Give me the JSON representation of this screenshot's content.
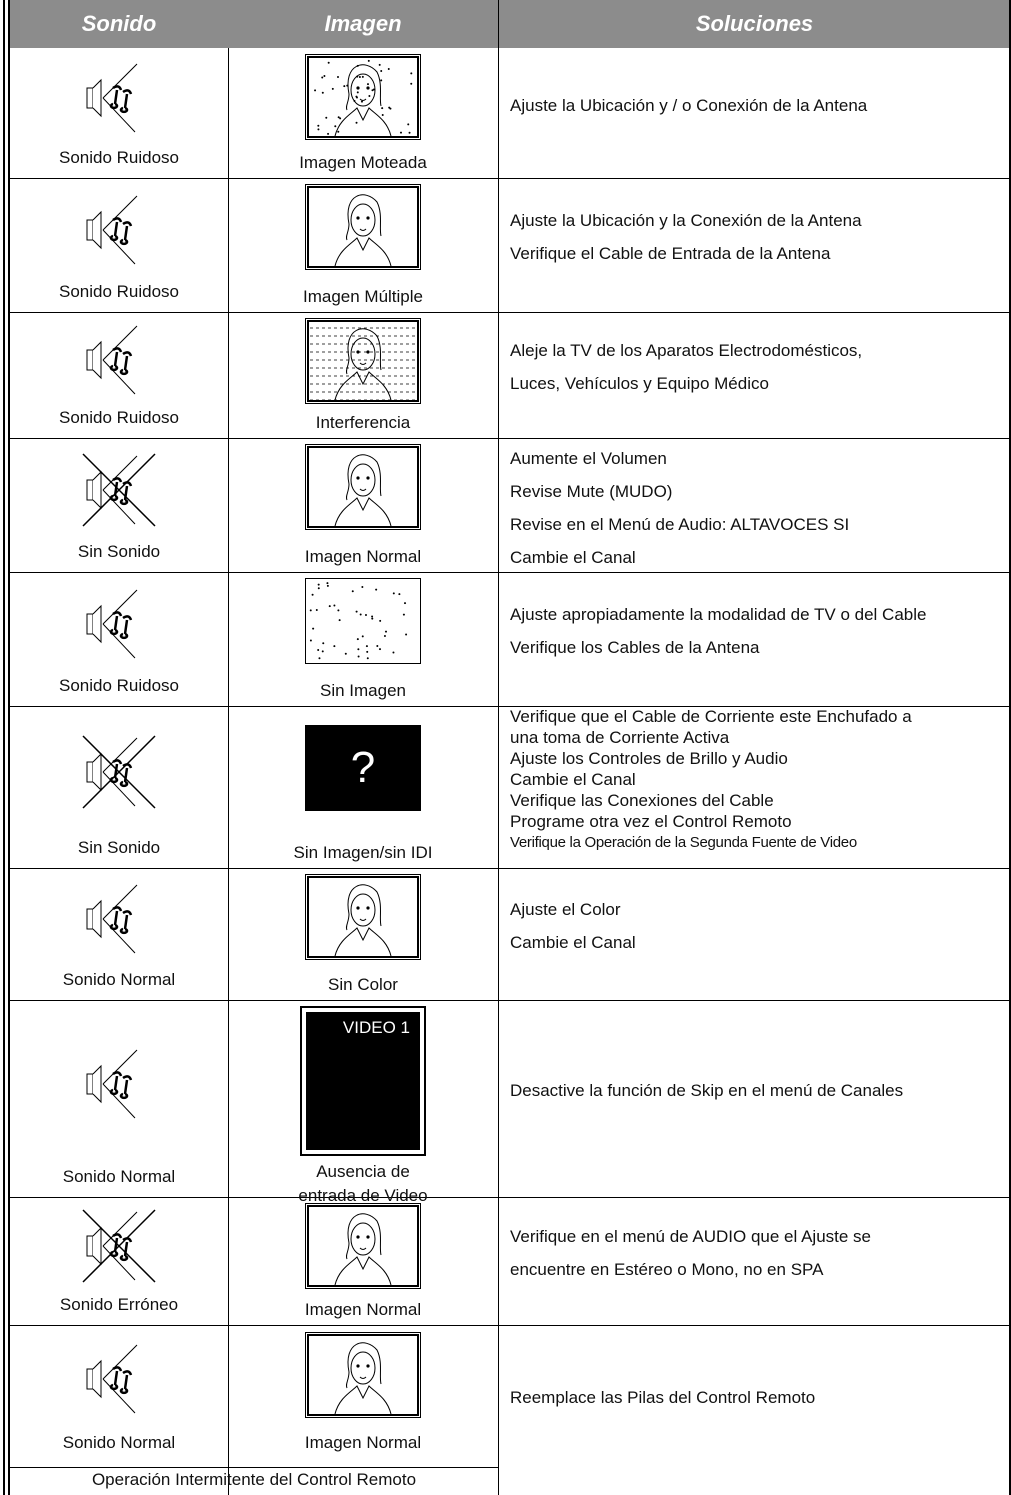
{
  "header": {
    "columns": [
      "Sonido",
      "Imagen",
      "Soluciones"
    ]
  },
  "rows": [
    {
      "sound": "Sonido Ruidoso",
      "image": "Imagen Moteada",
      "solutions": [
        "Ajuste la Ubicación y / o Conexión de la Antena"
      ]
    },
    {
      "sound": "Sonido Ruidoso",
      "image": "Imagen Múltiple",
      "solutions": [
        "Ajuste la Ubicación y la Conexión de la Antena",
        "Verifique el Cable de Entrada de la Antena"
      ]
    },
    {
      "sound": "Sonido Ruidoso",
      "image": "Interferencia",
      "solutions": [
        "Aleje la TV de los Aparatos Electrodomésticos,",
        "Luces, Vehículos y Equipo Médico"
      ]
    },
    {
      "sound": "Sin Sonido",
      "image": "Imagen Normal",
      "solutions": [
        "Aumente el Volumen",
        "Revise Mute (MUDO)",
        "Revise en el Menú de Audio: ALTAVOCES  SI",
        "Cambie el Canal"
      ]
    },
    {
      "sound": "Sonido Ruidoso",
      "image": "Sin Imagen",
      "solutions": [
        "Ajuste apropiadamente la modalidad de TV o del Cable",
        "Verifique los Cables de la Antena"
      ]
    },
    {
      "sound": "Sin Sonido",
      "image": "Sin Imagen/sin IDI",
      "image_text": "?",
      "solutions": [
        "Verifique que el Cable de Corriente este Enchufado a",
        "una toma de Corriente Activa",
        "Ajuste los Controles de Brillo y Audio",
        "Cambie el Canal",
        "Verifique las Conexiones del Cable",
        "Programe otra vez el Control Remoto",
        "Verifique la Operación de la Segunda Fuente de Video"
      ]
    },
    {
      "sound": "Sonido Normal",
      "image": "Sin Color",
      "solutions": [
        "Ajuste el Color",
        "Cambie el Canal"
      ]
    },
    {
      "sound": "Sonido Normal",
      "image": [
        "Ausencia de",
        "entrada de Video"
      ],
      "image_text": "VIDEO 1",
      "solutions": [
        "Desactive la función de Skip en el menú de Canales"
      ]
    },
    {
      "sound": "Sonido Erróneo",
      "image": "Imagen Normal",
      "solutions": [
        "Verifique en el menú de AUDIO que el Ajuste se",
        "encuentre en Estéreo o Mono, no en SPA"
      ]
    },
    {
      "sound": "Sonido Normal",
      "image": "Imagen Normal",
      "solutions": [
        "Reemplace las Pilas del Control Remoto"
      ],
      "note": "Operación Intermitente del Control Remoto"
    }
  ]
}
